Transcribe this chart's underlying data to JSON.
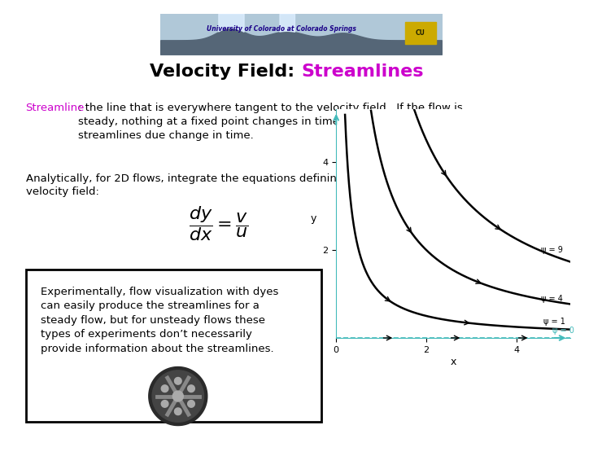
{
  "title_black": "Velocity Field: ",
  "title_magenta": "Streamlines",
  "title_fontsize": 16,
  "bg_color": "#ffffff",
  "text1_colored": "Streamline",
  "text1_rest": ": the line that is everywhere tangent to the velocity field.  If the flow is\nsteady, nothing at a fixed point changes in time.  In an unsteady flow the\nstreamlines due change in time.",
  "text2": "Analytically, for 2D flows, integrate the equations defining lines tangent to the\nvelocity field:",
  "box_text": "Experimentally, flow visualization with dyes\ncan easily produce the streamlines for a\nsteady flow, but for unsteady flows these\ntypes of experiments don’t necessarily\nprovide information about the streamlines.",
  "plot_xlabel": "x",
  "plot_ylabel": "y",
  "plot_xlim": [
    0,
    5.2
  ],
  "plot_ylim": [
    0,
    5.2
  ],
  "plot_xticks": [
    0,
    2,
    4
  ],
  "plot_yticks": [
    2,
    4
  ],
  "curve_labels": [
    "ψ = 9",
    "ψ = 4",
    "ψ = 1",
    "ψ = 0"
  ],
  "curve_psi": [
    9,
    4,
    1,
    0
  ],
  "curve_color": "#000000",
  "axis_color": "#44bbbb",
  "box_border_color": "#000000",
  "body_fontsize": 9.5,
  "header_text": "University of Colorado at Colorado Springs"
}
